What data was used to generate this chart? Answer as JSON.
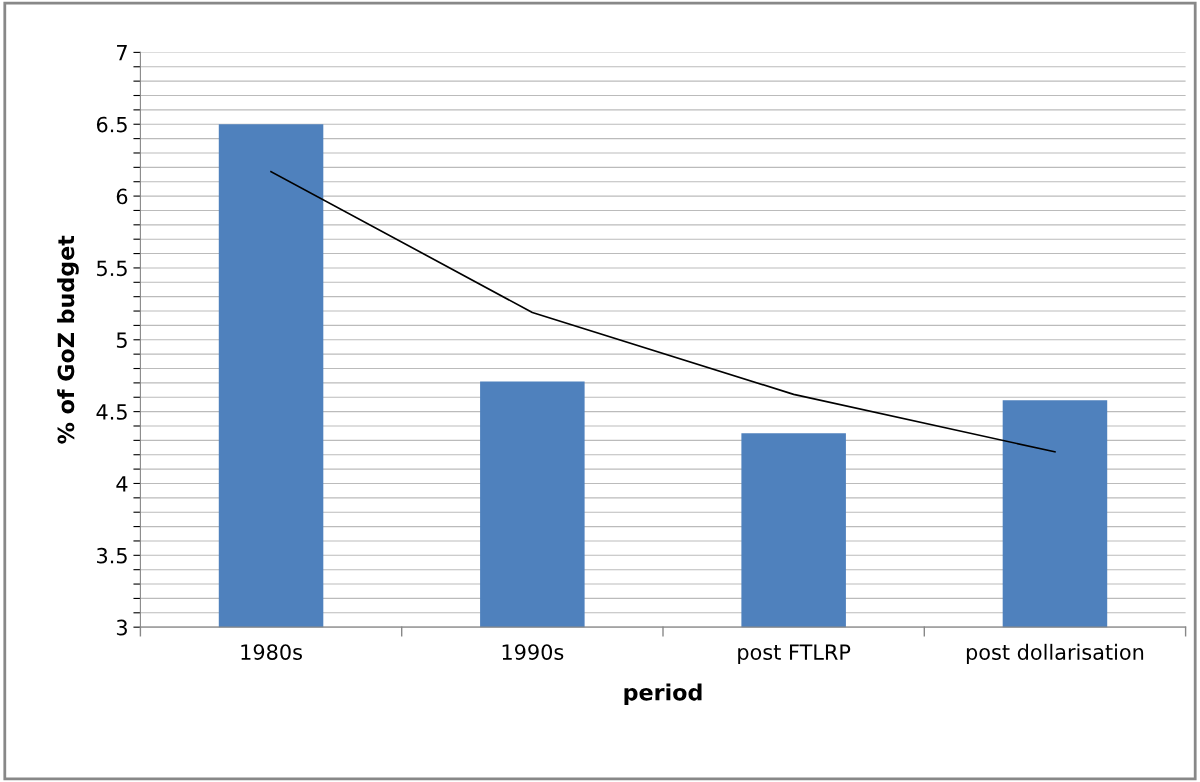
{
  "chart_data": {
    "type": "bar",
    "xlabel": "period",
    "ylabel": "% of GoZ budget",
    "categories": [
      "1980s",
      "1990s",
      "post FTLRP",
      "post dollarisation"
    ],
    "series": [
      {
        "color": "#4f81bd",
        "values": [
          6.5,
          4.71,
          4.35,
          4.58
        ]
      },
      {
        "type": "line",
        "color": "#000000",
        "values": [
          6.17,
          5.19,
          4.62,
          4.22
        ]
      }
    ],
    "ylim": [
      3,
      7
    ],
    "yticks": [
      3,
      {
        "value": 3.1,
        "label": null
      },
      {
        "value": 3.2,
        "label": null
      },
      {
        "value": 3.3,
        "label": null
      },
      {
        "value": 3.4,
        "label": null
      },
      3.5,
      {
        "value": 3.6,
        "label": null
      },
      {
        "value": 3.7,
        "label": null
      },
      {
        "value": 3.8,
        "label": null
      },
      {
        "value": 3.9,
        "label": null
      },
      4,
      {
        "value": 4.1,
        "label": null
      },
      {
        "value": 4.2,
        "label": null
      },
      {
        "value": 4.3,
        "label": null
      },
      {
        "value": 4.4,
        "label": null
      },
      4.5,
      {
        "value": 4.6,
        "label": null
      },
      {
        "value": 4.7,
        "label": null
      },
      {
        "value": 4.8,
        "label": null
      },
      {
        "value": 4.9,
        "label": null
      },
      5,
      {
        "value": 5.1,
        "label": null
      },
      {
        "value": 5.2,
        "label": null
      },
      {
        "value": 5.3,
        "label": null
      },
      {
        "value": 5.4,
        "label": null
      },
      5.5,
      {
        "value": 5.6,
        "label": null
      },
      {
        "value": 5.7,
        "label": null
      },
      {
        "value": 5.8,
        "label": null
      },
      {
        "value": 5.9,
        "label": null
      },
      6,
      {
        "value": 6.1,
        "label": null
      },
      {
        "value": 6.2,
        "label": null
      },
      {
        "value": 6.3,
        "label": null
      },
      {
        "value": 6.4,
        "label": null
      },
      6.5,
      {
        "value": 6.6,
        "label": null
      },
      {
        "value": 6.7,
        "label": null
      },
      {
        "value": 6.8,
        "label": null
      },
      {
        "value": 6.9,
        "label": null
      },
      7
    ],
    "grid": "y",
    "legend": false
  }
}
